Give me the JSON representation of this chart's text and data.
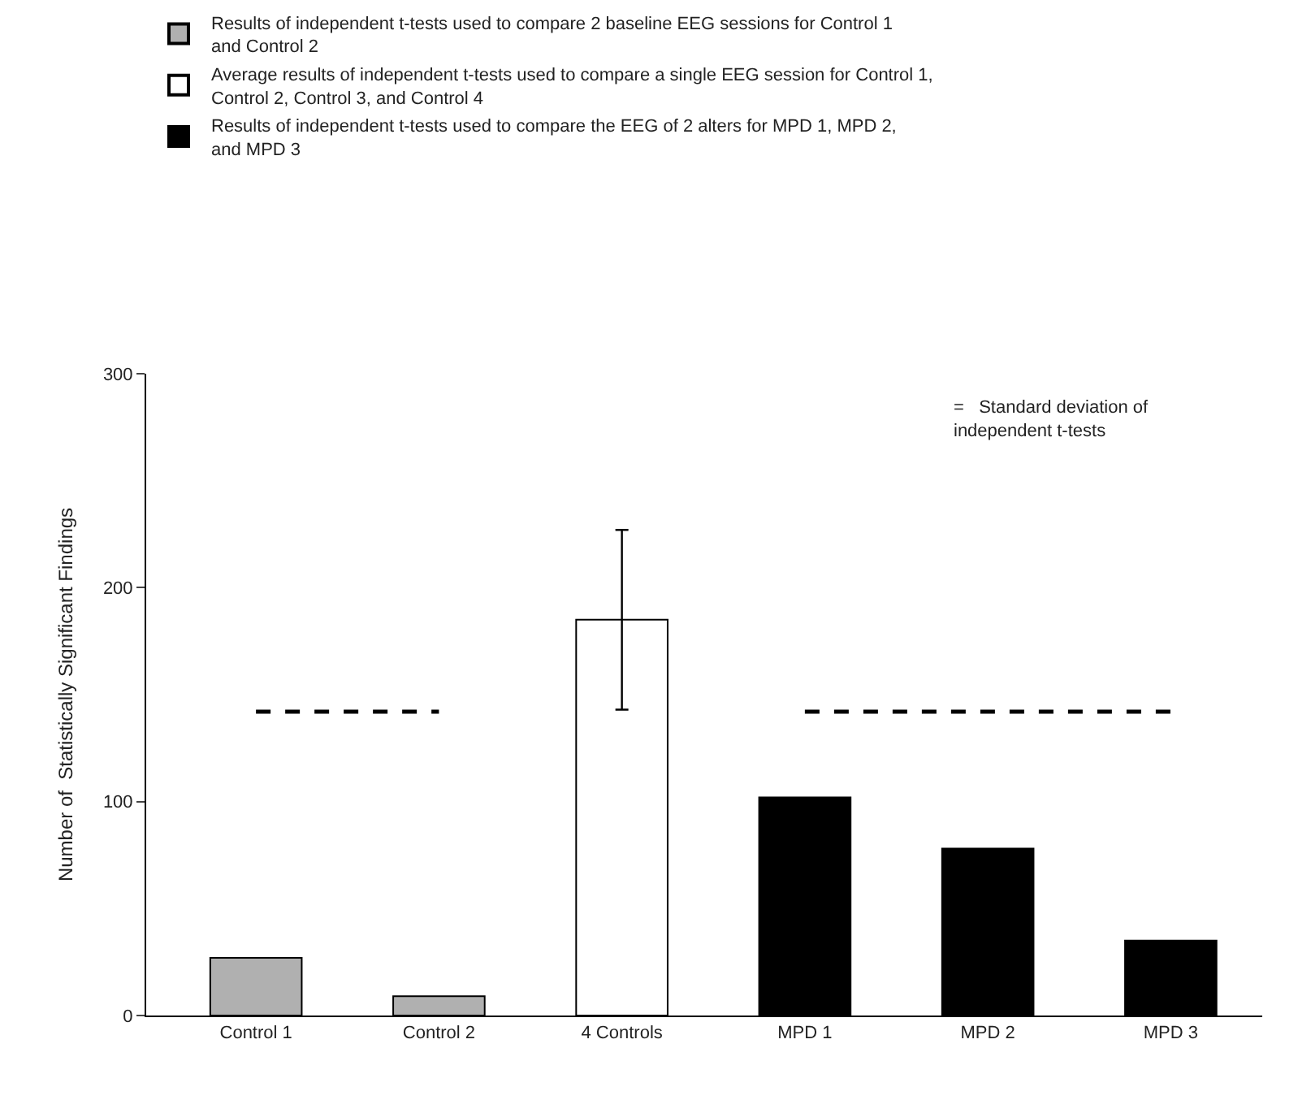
{
  "chart_data": {
    "type": "bar",
    "ylabel": "Number of  Statistically Significant Findings",
    "categories": [
      "Control 1",
      "Control 2",
      "4 Controls",
      "MPD 1",
      "MPD 2",
      "MPD 3"
    ],
    "series": [
      {
        "name": "Results of independent t-tests used to compare 2 baseline EEG sessions for Control 1\nand Control 2",
        "color": "#b0b0b0",
        "values": [
          27,
          9,
          null,
          null,
          null,
          null
        ]
      },
      {
        "name": "Average results of independent t-tests used to compare a single EEG session for Control 1,\nControl 2, Control 3, and Control 4",
        "color": "#ffffff",
        "values": [
          null,
          null,
          185,
          null,
          null,
          null
        ],
        "errors": [
          null,
          null,
          [
            143,
            227
          ],
          null,
          null,
          null
        ]
      },
      {
        "name": "Results of independent t-tests used to compare the EEG of 2 alters for MPD 1, MPD 2,\nand MPD 3",
        "color": "#000000",
        "values": [
          null,
          null,
          null,
          102,
          78,
          35
        ]
      },
      {
        "type": "line",
        "color": "#000000",
        "line_style": "dashed",
        "values": [
          142,
          142,
          null,
          142,
          142,
          142
        ]
      }
    ],
    "ylim": [
      0,
      300
    ],
    "yticks": [
      0,
      100,
      200,
      300
    ],
    "legend": "top",
    "annotations": [
      "=   Standard deviation of\nindependent t-tests"
    ]
  }
}
